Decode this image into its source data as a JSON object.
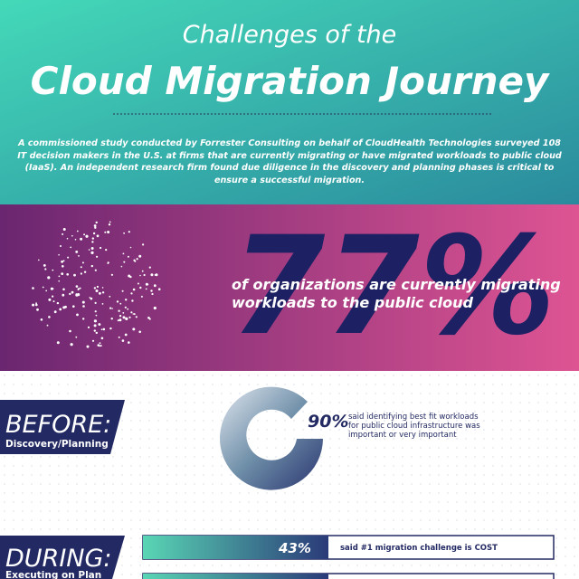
{
  "header": {
    "title_line1": "Challenges of the",
    "title_line2": "Cloud Migration Journey",
    "intro": "A commissioned study conducted by Forrester Consulting on behalf of CloudHealth Technologies surveyed 108 IT decision makers in the U.S. at firms that are currently migrating or have migrated workloads to public cloud (IaaS). An independent research firm found due diligence in the discovery and planning phases is critical to ensure a successful migration."
  },
  "stat_main": {
    "value": "77%",
    "text_line1": "of organizations are currently migrating",
    "text_line2": "workloads to the public cloud"
  },
  "before": {
    "label": "BEFORE:",
    "sublabel": "Discovery/Planning",
    "percent": "90%",
    "text_line1": "said identifying best fit workloads",
    "text_line2": "for public cloud infrastructure was",
    "text_line3": "important or very important"
  },
  "during": {
    "label": "DURING:",
    "sublabel": "Executing on Plan",
    "percent": "43%",
    "text": "said #1 migration challenge is COST"
  }
}
